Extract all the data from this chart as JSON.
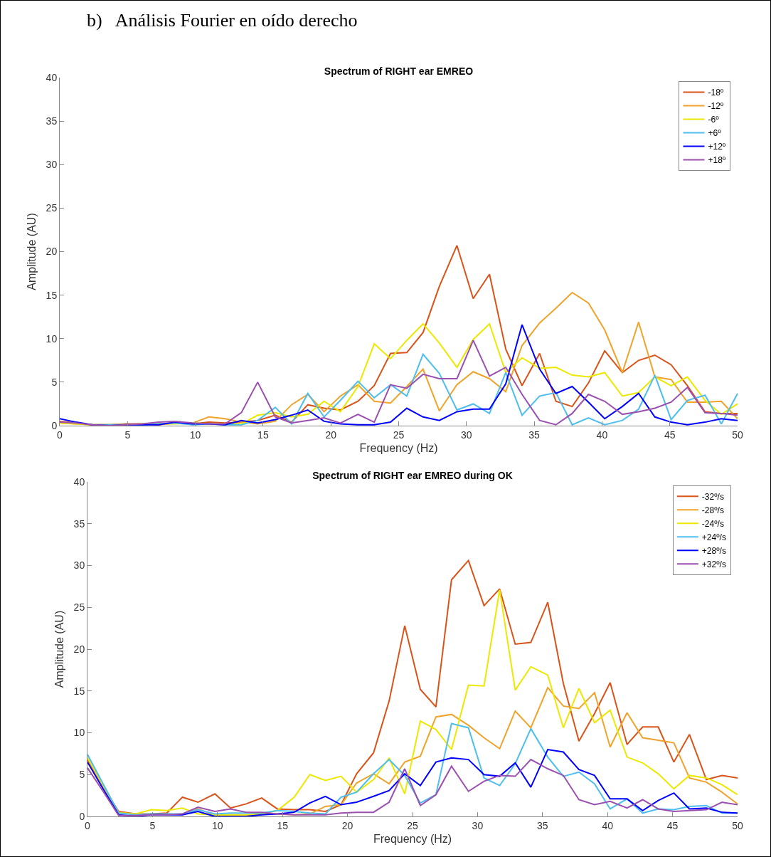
{
  "chart_data": [
    {
      "type": "line",
      "title": "Spectrum of RIGHT ear EMREO",
      "xlabel": "Frequency (Hz)",
      "ylabel": "Amplitude (AU)",
      "annotations": [
        "b)   Análisis Fourier en oído derecho"
      ],
      "x": [
        0,
        1.2,
        2.4,
        3.7,
        4.9,
        6.1,
        7.3,
        8.5,
        9.8,
        11,
        12.2,
        13.4,
        14.6,
        15.9,
        17.1,
        18.3,
        19.5,
        20.7,
        22,
        23.2,
        24.4,
        25.6,
        26.8,
        28,
        29.3,
        30.5,
        31.7,
        32.9,
        34.1,
        35.4,
        36.6,
        37.8,
        39,
        40.2,
        41.5,
        42.7,
        43.9,
        45.1,
        46.3,
        47.6,
        48.8,
        50
      ],
      "xlim": [
        0,
        50
      ],
      "xticks": [
        0,
        5,
        10,
        15,
        20,
        25,
        30,
        35,
        40,
        45,
        50
      ],
      "ylim": [
        0,
        40
      ],
      "yticks": [
        0,
        5,
        10,
        15,
        20,
        25,
        30,
        35,
        40
      ],
      "legend": "top right",
      "series": [
        {
          "name": "-18º",
          "color": "#d95319",
          "values": [
            0.5,
            0.3,
            0.1,
            0.1,
            0.2,
            0.2,
            0.1,
            0.3,
            0.2,
            0.4,
            0.3,
            0.4,
            0.6,
            1.2,
            0.4,
            2.4,
            2.0,
            1.8,
            2.8,
            4.6,
            8.3,
            8.4,
            10.7,
            16.0,
            20.7,
            14.6,
            17.4,
            8.8,
            4.6,
            8.3,
            2.8,
            2.2,
            4.9,
            8.6,
            6.1,
            7.5,
            8.1,
            7.0,
            4.6,
            1.6,
            1.4,
            1.4
          ]
        },
        {
          "name": "-12º",
          "color": "#f0a32a",
          "values": [
            0.3,
            0.2,
            0.1,
            0.1,
            0.1,
            0.2,
            0.2,
            0.3,
            0.3,
            1.0,
            0.8,
            0.4,
            0.2,
            0.5,
            2.4,
            3.6,
            1.6,
            3.4,
            4.7,
            2.8,
            2.6,
            4.5,
            6.5,
            1.7,
            4.7,
            6.2,
            5.4,
            3.9,
            9.2,
            11.8,
            13.5,
            15.3,
            14.1,
            11.0,
            6.1,
            11.9,
            5.6,
            5.3,
            2.7,
            2.7,
            2.8,
            0.8
          ]
        },
        {
          "name": "-6º",
          "color": "#ece800",
          "values": [
            0.3,
            0.2,
            0.1,
            0.1,
            0.1,
            0.2,
            0.2,
            0.2,
            0.3,
            0.2,
            0.2,
            0.2,
            1.2,
            1.5,
            1.0,
            1.3,
            2.8,
            1.6,
            4.5,
            9.4,
            7.7,
            9.8,
            11.7,
            9.5,
            6.7,
            9.9,
            11.7,
            6.1,
            7.8,
            6.6,
            6.7,
            5.8,
            5.6,
            6.1,
            3.4,
            3.8,
            5.6,
            4.6,
            5.6,
            2.9,
            1.3,
            2.5
          ]
        },
        {
          "name": "+6º",
          "color": "#4dbeee",
          "values": [
            null,
            null,
            0.1,
            0.1,
            0.1,
            0.1,
            0.2,
            0.3,
            0.1,
            0.2,
            0.1,
            0.1,
            0.6,
            2.1,
            0.2,
            3.7,
            1.0,
            2.9,
            5.1,
            3.2,
            4.7,
            3.4,
            8.2,
            6.0,
            1.8,
            2.5,
            1.4,
            6.1,
            1.2,
            3.4,
            3.8,
            0.1,
            0.9,
            0.1,
            0.6,
            1.9,
            5.8,
            0.7,
            2.9,
            3.5,
            0.2,
            3.7
          ]
        },
        {
          "name": "+12º",
          "color": "#0000ff",
          "values": [
            0.8,
            0.4,
            0.1,
            0.0,
            0.1,
            0.1,
            0.1,
            0.4,
            0.2,
            0.2,
            0.1,
            0.6,
            0.3,
            0.7,
            1.2,
            1.8,
            0.5,
            0.2,
            0.1,
            0.1,
            0.4,
            2.0,
            1.0,
            0.6,
            1.6,
            1.9,
            1.9,
            4.8,
            11.6,
            6.5,
            3.7,
            4.5,
            2.7,
            0.8,
            2.2,
            3.7,
            1.0,
            0.4,
            0.1,
            0.4,
            0.8,
            0.6
          ]
        },
        {
          "name": "+18º",
          "color": "#9b4fb0",
          "values": [
            0.4,
            0.3,
            0.1,
            0.0,
            0.1,
            0.2,
            0.4,
            0.5,
            0.3,
            0.2,
            0.2,
            1.5,
            5.0,
            1.0,
            0.3,
            0.6,
            0.9,
            0.3,
            1.3,
            0.4,
            4.7,
            4.3,
            5.9,
            5.4,
            5.4,
            9.8,
            5.7,
            6.7,
            3.6,
            0.6,
            0.1,
            1.4,
            3.6,
            2.8,
            1.3,
            1.6,
            2.0,
            2.7,
            4.4,
            1.5,
            1.4,
            1.2
          ]
        }
      ]
    },
    {
      "type": "line",
      "title": "Spectrum of RIGHT ear EMREO during OK",
      "xlabel": "Frequency (Hz)",
      "ylabel": "Amplitude (AU)",
      "x": [
        0,
        1.2,
        2.4,
        3.7,
        4.9,
        6.1,
        7.3,
        8.5,
        9.8,
        11,
        12.2,
        13.4,
        14.6,
        15.9,
        17.1,
        18.3,
        19.5,
        20.7,
        22,
        23.2,
        24.4,
        25.6,
        26.8,
        28,
        29.3,
        30.5,
        31.7,
        32.9,
        34.1,
        35.4,
        36.6,
        37.8,
        39,
        40.2,
        41.5,
        42.7,
        43.9,
        45.1,
        46.3,
        47.6,
        48.8,
        50
      ],
      "xlim": [
        0,
        50
      ],
      "xticks": [
        0,
        5,
        10,
        15,
        20,
        25,
        30,
        35,
        40,
        45,
        50
      ],
      "ylim": [
        0,
        40
      ],
      "yticks": [
        0,
        5,
        10,
        15,
        20,
        25,
        30,
        35,
        40
      ],
      "legend": "top right",
      "series": [
        {
          "name": "-32º/s",
          "color": "#d95319",
          "values": [
            6.8,
            3.5,
            0.6,
            0.3,
            0.3,
            0.4,
            2.3,
            1.7,
            2.7,
            1.0,
            1.5,
            2.2,
            0.9,
            0.8,
            0.8,
            0.6,
            1.4,
            5.1,
            7.6,
            13.8,
            22.8,
            15.2,
            13.1,
            28.3,
            30.6,
            25.2,
            27.2,
            20.6,
            20.8,
            25.6,
            15.9,
            9.0,
            12.3,
            16.0,
            8.6,
            10.7,
            10.7,
            6.5,
            9.8,
            4.4,
            4.9,
            4.6
          ]
        },
        {
          "name": "-28º/s",
          "color": "#f0a32a",
          "values": [
            6.5,
            3.4,
            0.5,
            0.3,
            0.2,
            0.3,
            0.2,
            0.9,
            0.1,
            0.2,
            0.1,
            0.3,
            0.3,
            0.2,
            0.3,
            1.2,
            1.4,
            4.0,
            5.1,
            3.9,
            6.5,
            7.2,
            11.9,
            12.2,
            10.9,
            9.4,
            8.1,
            12.6,
            10.6,
            15.4,
            13.2,
            12.9,
            14.8,
            8.3,
            12.4,
            9.4,
            9.1,
            8.8,
            4.6,
            4.1,
            2.9,
            1.5
          ]
        },
        {
          "name": "-24º/s",
          "color": "#ece800",
          "values": [
            7.0,
            3.7,
            0.4,
            0.3,
            0.8,
            0.7,
            1.0,
            0.3,
            0.2,
            0.2,
            0.2,
            0.3,
            0.7,
            2.3,
            5.0,
            4.3,
            4.8,
            2.9,
            4.4,
            7.0,
            2.7,
            11.4,
            10.4,
            8.0,
            15.7,
            15.6,
            27.1,
            15.1,
            17.9,
            16.9,
            10.6,
            15.3,
            11.2,
            12.7,
            7.1,
            6.4,
            5.1,
            3.3,
            4.9,
            4.6,
            3.8,
            2.6
          ]
        },
        {
          "name": "+24º/s",
          "color": "#4dbeee",
          "values": [
            7.4,
            3.9,
            0.4,
            0.2,
            0.3,
            0.3,
            0.3,
            0.8,
            0.3,
            0.4,
            0.4,
            0.4,
            0.7,
            0.6,
            0.4,
            0.3,
            2.3,
            2.9,
            5.1,
            6.8,
            4.9,
            1.6,
            2.6,
            11.1,
            10.6,
            4.6,
            3.7,
            6.3,
            10.5,
            7.1,
            4.8,
            5.3,
            3.9,
            0.9,
            2.1,
            0.4,
            0.9,
            0.8,
            1.2,
            1.3,
            0.4,
            0.4
          ]
        },
        {
          "name": "+28º/s",
          "color": "#0000ff",
          "values": [
            6.5,
            3.3,
            0.2,
            0.0,
            0.2,
            0.2,
            0.2,
            0.6,
            0.0,
            0.0,
            0.0,
            0.2,
            0.3,
            0.5,
            1.6,
            2.4,
            1.4,
            1.7,
            2.4,
            3.1,
            5.1,
            3.7,
            6.5,
            7.0,
            6.8,
            5.0,
            4.8,
            6.4,
            3.5,
            8.0,
            7.7,
            5.6,
            4.9,
            2.1,
            2.1,
            0.7,
            1.9,
            2.8,
            0.9,
            1.0,
            0.5,
            0.4
          ]
        },
        {
          "name": "+32º/s",
          "color": "#9b4fb0",
          "values": [
            5.8,
            3.0,
            0.1,
            0.1,
            0.2,
            0.2,
            0.3,
            1.1,
            0.6,
            0.9,
            0.5,
            0.5,
            0.3,
            0.2,
            0.2,
            0.2,
            0.4,
            0.5,
            0.5,
            1.7,
            5.7,
            1.3,
            2.6,
            6.0,
            3.0,
            4.2,
            4.9,
            4.8,
            6.8,
            5.7,
            4.9,
            2.0,
            1.4,
            1.8,
            1.0,
            2.0,
            0.9,
            0.6,
            0.7,
            0.8,
            1.7,
            1.4
          ]
        }
      ]
    }
  ]
}
